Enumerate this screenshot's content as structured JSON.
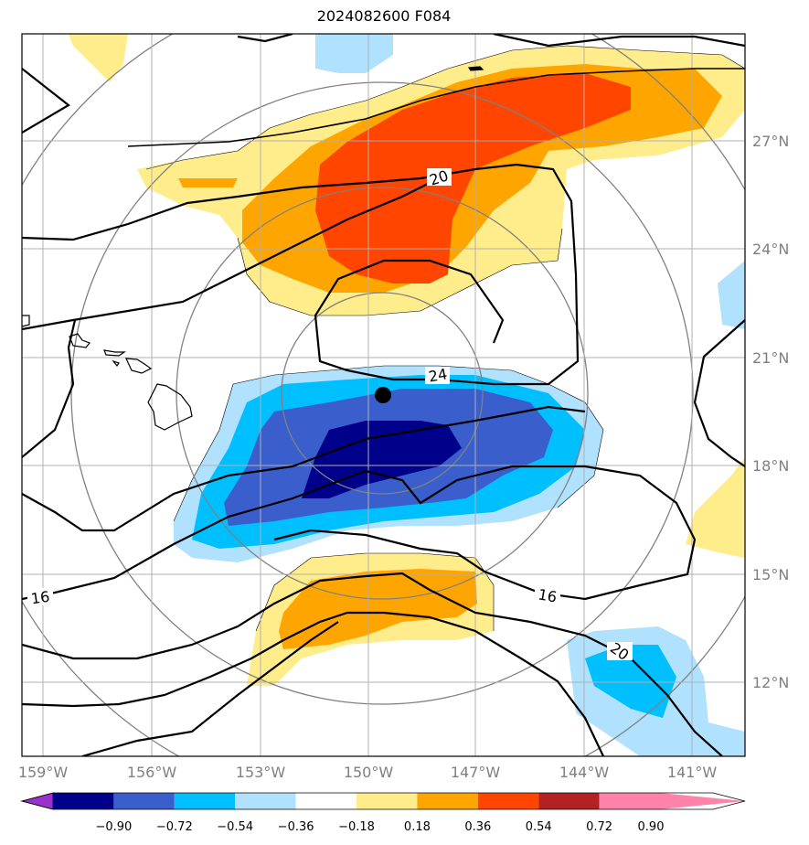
{
  "title": "2024082600 F084",
  "lon_labels": [
    "159°W",
    "156°W",
    "153°W",
    "150°W",
    "147°W",
    "144°W",
    "141°W"
  ],
  "lat_labels": [
    "27°N",
    "24°N",
    "21°N",
    "18°N",
    "15°N",
    "12°N"
  ],
  "contour_labels": [
    "20",
    "24",
    "16",
    "16",
    "20"
  ],
  "colorbar": {
    "tick_labels": [
      "−0.90",
      "−0.72",
      "−0.54",
      "−0.36",
      "−0.18",
      "0.18",
      "0.36",
      "0.54",
      "0.72",
      "0.90"
    ],
    "colors": [
      "#9932cc",
      "#00008b",
      "#3a5fcd",
      "#00bfff",
      "#b0e2ff",
      "#ffffff",
      "#ffec8b",
      "#ffa500",
      "#ff4500",
      "#b22222",
      "#ff82ab"
    ]
  },
  "fill_colors": {
    "neg_light": "#b0e2ff",
    "neg_mid": "#00bfff",
    "neg_strong": "#3a5fcd",
    "neg_max": "#00008b",
    "pos_light": "#ffec8b",
    "pos_mid": "#ffa500",
    "pos_strong": "#ff4500"
  },
  "storm_center": {
    "lon": -149.8,
    "lat": 19.8
  }
}
